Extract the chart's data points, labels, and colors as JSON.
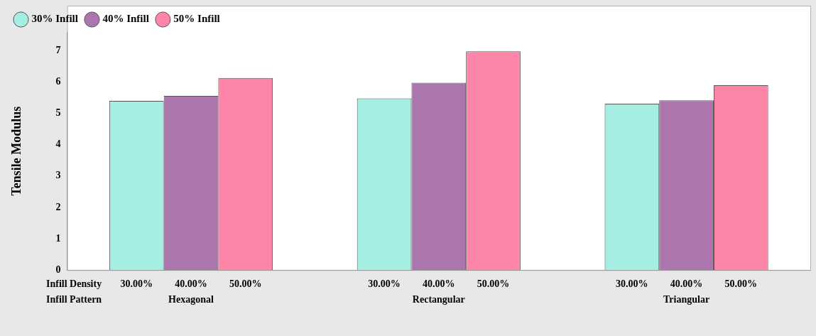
{
  "chart_data": {
    "type": "bar",
    "ylabel": "Tensile Modulus",
    "xlabel": "Infill Pattern",
    "categories": [
      "Hexagonal",
      "Rectangular",
      "Triangular"
    ],
    "series": [
      {
        "name": "30% Infill",
        "color": "#a6ede4",
        "values": [
          5.4,
          5.48,
          5.31
        ]
      },
      {
        "name": "40% Infill",
        "color": "#ab76ad",
        "values": [
          5.56,
          5.98,
          5.42
        ]
      },
      {
        "name": "50% Infill",
        "color": "#fd86a8",
        "values": [
          6.13,
          6.98,
          5.9
        ]
      }
    ],
    "ylim": [
      0,
      7.6
    ],
    "yticks": [
      0,
      1,
      2,
      3,
      4,
      5,
      6,
      7
    ],
    "grid": false,
    "legend": "top left",
    "annotations": [
      "Infill Density",
      "30.00%",
      "40.00%",
      "50.00%",
      "30.00%",
      "40.00%",
      "50.00%",
      "30.00%",
      "40.00%",
      "50.00%"
    ]
  }
}
